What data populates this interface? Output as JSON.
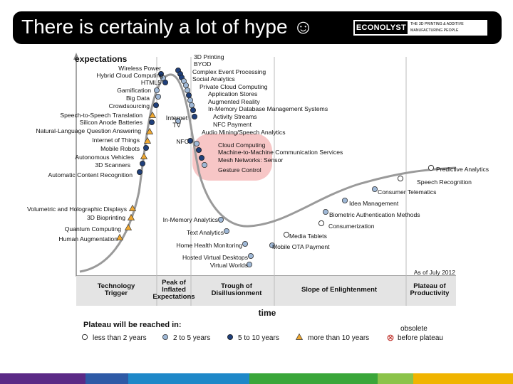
{
  "slide": {
    "title": "There is certainly a lot of hype ☺",
    "logo": {
      "brand": "ECONOLYST",
      "tagline_1": "THE 3D PRINTING & ADDITIVE",
      "tagline_2": "MANUFACTURING PEOPLE"
    }
  },
  "colors": {
    "title_bar": "#000000",
    "curve": "#9a9a9a",
    "dot_dark": "#1f3f7a",
    "dot_light": "#9fb8d6",
    "triangle": "#f0a830",
    "highlight": "#f7c6c6",
    "footer": [
      "#5b2a86",
      "#2e5aa6",
      "#1e88c8",
      "#3aa63a",
      "#8bc34a",
      "#f0b400"
    ]
  },
  "chart_data": {
    "type": "hype-cycle",
    "ylabel": "expectations",
    "xlabel": "time",
    "as_of": "As of July 2012",
    "phases": [
      "Technology Trigger",
      "Peak of Inflated Expectations",
      "Trough of Disillusionment",
      "Slope of Enlightenment",
      "Plateau of Productivity"
    ],
    "legend_title": "Plateau will be reached in:",
    "legend": [
      {
        "label": "less than 2 years",
        "marker": "open-circle"
      },
      {
        "label": "2 to 5 years",
        "marker": "light-circle"
      },
      {
        "label": "5 to 10 years",
        "marker": "dark-circle"
      },
      {
        "label": "more than 10 years",
        "marker": "triangle"
      },
      {
        "label_1": "obsolete",
        "label_2": "before plateau",
        "marker": "x-circle"
      }
    ],
    "items": [
      {
        "label": "3D Printing",
        "marker": "dark-circle",
        "highlight": false
      },
      {
        "label": "BYOD",
        "marker": "dark-circle",
        "highlight": false
      },
      {
        "label": "Complex Event Processing",
        "marker": "dark-circle",
        "highlight": false
      },
      {
        "label": "Social Analytics",
        "marker": "light-circle",
        "highlight": false
      },
      {
        "label": "Private Cloud Computing",
        "marker": "light-circle",
        "highlight": false
      },
      {
        "label": "Application Stores",
        "marker": "light-circle",
        "highlight": false
      },
      {
        "label": "Augmented Reality",
        "marker": "dark-circle",
        "highlight": false
      },
      {
        "label": "In-Memory Database Management Systems",
        "marker": "light-circle",
        "highlight": false
      },
      {
        "label": "Activity Streams",
        "marker": "light-circle",
        "highlight": false
      },
      {
        "label": "NFC Payment",
        "marker": "dark-circle",
        "highlight": false
      },
      {
        "label": "Audio Mining/Speech Analytics",
        "marker": "dark-circle",
        "highlight": false
      },
      {
        "label": "Cloud Computing",
        "marker": "light-circle",
        "highlight": true
      },
      {
        "label": "Machine-to-Machine Communication Services",
        "marker": "dark-circle",
        "highlight": false
      },
      {
        "label": "Mesh Networks: Sensor",
        "marker": "dark-circle",
        "highlight": false
      },
      {
        "label": "Gesture Control",
        "marker": "light-circle",
        "highlight": true
      },
      {
        "label": "Wireless Power",
        "marker": "dark-circle",
        "highlight": false
      },
      {
        "label": "Hybrid Cloud Computing",
        "marker": "light-circle",
        "highlight": false
      },
      {
        "label": "HTML5",
        "marker": "dark-circle",
        "highlight": false
      },
      {
        "label": "Gamification",
        "marker": "light-circle",
        "highlight": false
      },
      {
        "label": "Big Data",
        "marker": "light-circle",
        "highlight": false
      },
      {
        "label": "Crowdsourcing",
        "marker": "dark-circle",
        "highlight": false
      },
      {
        "label": "Speech-to-Speech Translation",
        "marker": "triangle",
        "highlight": false
      },
      {
        "label": "Silicon Anode Batteries",
        "marker": "dark-circle",
        "highlight": false
      },
      {
        "label": "Natural-Language Question Answering",
        "marker": "triangle",
        "highlight": false
      },
      {
        "label": "Internet of Things",
        "marker": "triangle",
        "highlight": false
      },
      {
        "label": "Mobile Robots",
        "marker": "dark-circle",
        "highlight": false
      },
      {
        "label": "Autonomous Vehicles",
        "marker": "triangle",
        "highlight": false
      },
      {
        "label": "3D Scanners",
        "marker": "dark-circle",
        "highlight": false
      },
      {
        "label": "Automatic Content Recognition",
        "marker": "dark-circle",
        "highlight": false
      },
      {
        "label": "Internet TV",
        "marker": "light-circle",
        "highlight": false
      },
      {
        "label": "NFC",
        "marker": "dark-circle",
        "highlight": false
      },
      {
        "label": "Volumetric and Holographic Displays",
        "marker": "triangle",
        "highlight": false
      },
      {
        "label": "3D Bioprinting",
        "marker": "triangle",
        "highlight": false
      },
      {
        "label": "Quantum Computing",
        "marker": "triangle",
        "highlight": false
      },
      {
        "label": "Human Augmentation",
        "marker": "triangle",
        "highlight": false
      },
      {
        "label": "In-Memory Analytics",
        "marker": "light-circle",
        "highlight": false
      },
      {
        "label": "Text Analytics",
        "marker": "light-circle",
        "highlight": false
      },
      {
        "label": "Home Health Monitoring",
        "marker": "light-circle",
        "highlight": false
      },
      {
        "label": "Hosted Virtual Desktops",
        "marker": "light-circle",
        "highlight": false
      },
      {
        "label": "Virtual Worlds",
        "marker": "light-circle",
        "highlight": false
      },
      {
        "label": "Media Tablets",
        "marker": "open-circle",
        "highlight": false
      },
      {
        "label": "Mobile OTA Payment",
        "marker": "light-circle",
        "highlight": false
      },
      {
        "label": "Consumerization",
        "marker": "open-circle",
        "highlight": false
      },
      {
        "label": "Biometric Authentication Methods",
        "marker": "light-circle",
        "highlight": false
      },
      {
        "label": "Idea Management",
        "marker": "light-circle",
        "highlight": false
      },
      {
        "label": "Consumer Telematics",
        "marker": "light-circle",
        "highlight": false
      },
      {
        "label": "Speech Recognition",
        "marker": "open-circle",
        "highlight": false
      },
      {
        "label": "Predictive Analytics",
        "marker": "open-circle",
        "highlight": false
      }
    ]
  }
}
